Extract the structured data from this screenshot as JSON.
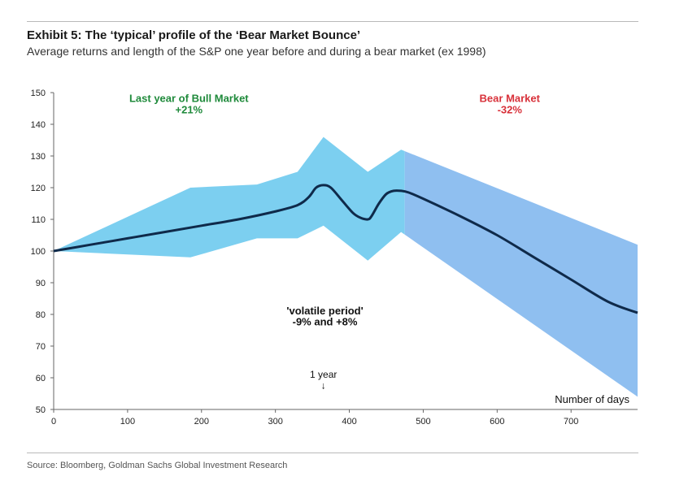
{
  "header": {
    "title": "Exhibit 5: The ‘typical’ profile of the ‘Bear Market Bounce’",
    "subtitle": "Average returns and length of the S&P one year before and during a bear market (ex 1998)"
  },
  "footer": {
    "source": "Source: Bloomberg, Goldman Sachs Global Investment Research"
  },
  "chart_data": {
    "type": "area",
    "title": "Exhibit 5: The ‘typical’ profile of the ‘Bear Market Bounce’",
    "subtitle": "Average returns and length of the S&P one year before and during a bear market (ex 1998)",
    "xlabel": "Number of days",
    "ylabel": "",
    "xlim": [
      0,
      790
    ],
    "ylim": [
      50,
      150
    ],
    "xticks": [
      0,
      100,
      200,
      300,
      400,
      500,
      600,
      700
    ],
    "yticks": [
      50,
      60,
      70,
      80,
      90,
      100,
      110,
      120,
      130,
      140,
      150
    ],
    "grid": false,
    "colors": {
      "band": "#7ccff0",
      "band_bear": "#8fbff0",
      "line": "#0f2a4a",
      "bull": "#1f8a3b",
      "bear": "#d8313a"
    },
    "band": {
      "x": [
        0,
        185,
        275,
        330,
        365,
        425,
        470,
        790
      ],
      "upper": [
        100,
        120,
        121,
        125,
        136,
        125,
        132,
        102
      ],
      "lower": [
        100,
        98,
        104,
        104,
        108,
        97,
        106,
        54
      ]
    },
    "series": [
      {
        "x": [
          0,
          50,
          100,
          150,
          200,
          250,
          300,
          330,
          345,
          355,
          365,
          375,
          390,
          405,
          415,
          425,
          430,
          440,
          450,
          460,
          470,
          480,
          500,
          550,
          600,
          650,
          700,
          750,
          790
        ],
        "values": [
          100,
          102,
          104,
          106,
          108,
          110,
          112.5,
          114.5,
          117,
          120,
          120.8,
          120,
          116,
          112,
          110.5,
          110,
          111,
          115,
          118,
          119,
          119,
          118.5,
          116.5,
          111,
          105,
          98,
          91,
          84,
          80.5
        ]
      }
    ],
    "annotations": [
      {
        "text": "Last year of Bull Market",
        "x": 183,
        "y": 147,
        "color": "bull"
      },
      {
        "text": "+21%",
        "x": 183,
        "y": 143.5,
        "color": "bull"
      },
      {
        "text": "Bear Market",
        "x": 617,
        "y": 147,
        "color": "bear"
      },
      {
        "text": "-32%",
        "x": 617,
        "y": 143.5,
        "color": "bear"
      },
      {
        "text": "'volatile period'",
        "x": 367,
        "y": 80,
        "color": "dark"
      },
      {
        "text": "-9% and +8%",
        "x": 367,
        "y": 76.5,
        "color": "dark"
      },
      {
        "text": "1 year",
        "x": 365,
        "y": 60,
        "color": "dark"
      },
      {
        "text": "↓",
        "x": 365,
        "y": 56.5,
        "color": "dark"
      }
    ],
    "bear_start_x": 475
  }
}
